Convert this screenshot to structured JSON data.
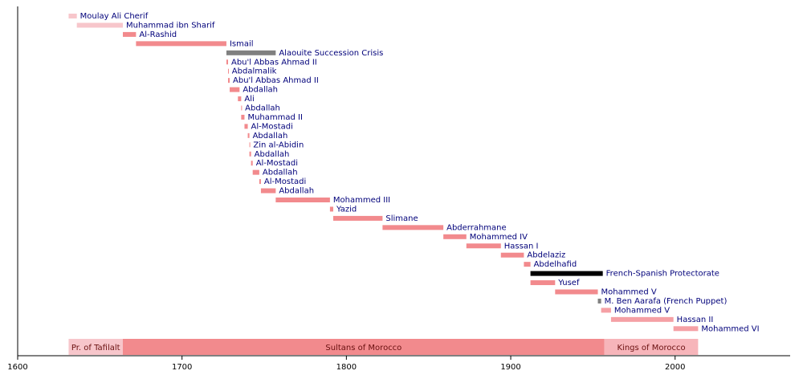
{
  "chart_data": {
    "type": "timeline",
    "xlim": [
      1600,
      2070
    ],
    "xticks": [
      1600,
      1700,
      1800,
      1900,
      2000
    ],
    "bars": [
      {
        "label": "Moulay Ali Cherif",
        "start": 1631,
        "end": 1636,
        "color": "#f7c6cb"
      },
      {
        "label": "Muhammad ibn Sharif",
        "start": 1636,
        "end": 1664,
        "color": "#f7c6cb"
      },
      {
        "label": "Al-Rashid",
        "start": 1664,
        "end": 1672,
        "color": "#f28a8d"
      },
      {
        "label": "Ismail",
        "start": 1672,
        "end": 1727,
        "color": "#f28a8d"
      },
      {
        "label": "Alaouite Succession Crisis",
        "start": 1727,
        "end": 1757,
        "color": "#808080"
      },
      {
        "label": "Abu'l Abbas Ahmad II",
        "start": 1727,
        "end": 1728,
        "color": "#f28a8d"
      },
      {
        "label": "Abdalmalik",
        "start": 1728,
        "end": 1728.4,
        "color": "#f28a8d"
      },
      {
        "label": "Abu'l Abbas Ahmad II",
        "start": 1728,
        "end": 1729,
        "color": "#f28a8d"
      },
      {
        "label": "Abdallah",
        "start": 1729,
        "end": 1735,
        "color": "#f28a8d"
      },
      {
        "label": "Ali",
        "start": 1734,
        "end": 1736,
        "color": "#f28a8d"
      },
      {
        "label": "Abdallah",
        "start": 1736,
        "end": 1736.4,
        "color": "#f28a8d"
      },
      {
        "label": "Muhammad II",
        "start": 1736,
        "end": 1738,
        "color": "#f28a8d"
      },
      {
        "label": "Al-Mostadi",
        "start": 1738,
        "end": 1740,
        "color": "#f28a8d"
      },
      {
        "label": "Abdallah",
        "start": 1740,
        "end": 1741,
        "color": "#f28a8d"
      },
      {
        "label": "Zin al-Abidin",
        "start": 1741,
        "end": 1741.4,
        "color": "#f28a8d"
      },
      {
        "label": "Abdallah",
        "start": 1741,
        "end": 1742,
        "color": "#f28a8d"
      },
      {
        "label": "Al-Mostadi",
        "start": 1742,
        "end": 1743,
        "color": "#f28a8d"
      },
      {
        "label": "Abdallah",
        "start": 1743,
        "end": 1747,
        "color": "#f28a8d"
      },
      {
        "label": "Al-Mostadi",
        "start": 1747,
        "end": 1748,
        "color": "#f28a8d"
      },
      {
        "label": "Abdallah",
        "start": 1748,
        "end": 1757,
        "color": "#f28a8d"
      },
      {
        "label": "Mohammed III",
        "start": 1757,
        "end": 1790,
        "color": "#f28a8d"
      },
      {
        "label": "Yazid",
        "start": 1790,
        "end": 1792,
        "color": "#f28a8d"
      },
      {
        "label": "Slimane",
        "start": 1792,
        "end": 1822,
        "color": "#f28a8d"
      },
      {
        "label": "Abderrahmane",
        "start": 1822,
        "end": 1859,
        "color": "#f28a8d"
      },
      {
        "label": "Mohammed IV",
        "start": 1859,
        "end": 1873,
        "color": "#f28a8d"
      },
      {
        "label": "Hassan I",
        "start": 1873,
        "end": 1894,
        "color": "#f28a8d"
      },
      {
        "label": "Abdelaziz",
        "start": 1894,
        "end": 1908,
        "color": "#f28a8d"
      },
      {
        "label": "Abdelhafid",
        "start": 1908,
        "end": 1912,
        "color": "#f28a8d"
      },
      {
        "label": "French-Spanish Protectorate",
        "start": 1912,
        "end": 1956,
        "color": "#000000"
      },
      {
        "label": "Yusef",
        "start": 1912,
        "end": 1927,
        "color": "#f28a8d"
      },
      {
        "label": "Mohammed V",
        "start": 1927,
        "end": 1953,
        "color": "#f28a8d"
      },
      {
        "label": "M. Ben Aarafa (French Puppet)",
        "start": 1953,
        "end": 1955,
        "color": "#808080"
      },
      {
        "label": "Mohammed V",
        "start": 1955,
        "end": 1961,
        "color": "#f5a0a5"
      },
      {
        "label": "Hassan II",
        "start": 1961,
        "end": 1999,
        "color": "#f5a0a5"
      },
      {
        "label": "Mohammed VI",
        "start": 1999,
        "end": 2014,
        "color": "#f5a0a5"
      }
    ],
    "bands": [
      {
        "label": "Pr. of Tafilalt",
        "start": 1631,
        "end": 1664,
        "color": "#f7c6cb"
      },
      {
        "label": "Sultans of Morocco",
        "start": 1664,
        "end": 1957,
        "color": "#f28a8d"
      },
      {
        "label": "Kings of Morocco",
        "start": 1957,
        "end": 2014,
        "color": "#f7b5ba"
      }
    ]
  }
}
